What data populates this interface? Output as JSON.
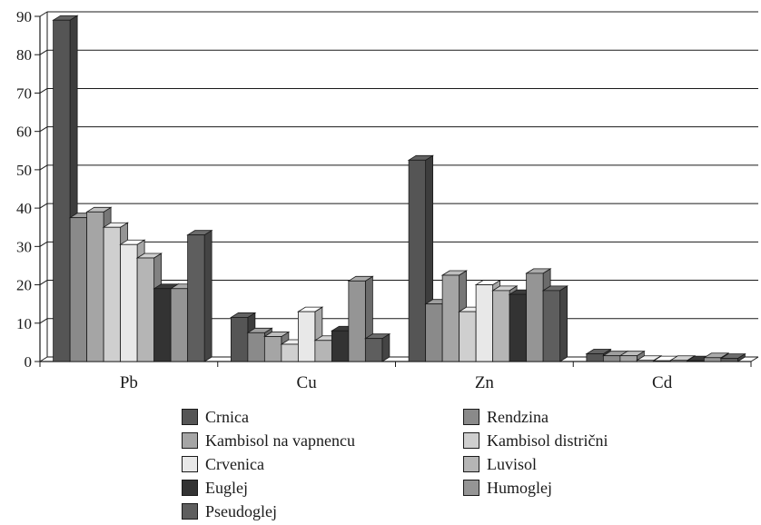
{
  "chart_data": {
    "type": "bar",
    "categories": [
      "Pb",
      "Cu",
      "Zn",
      "Cd"
    ],
    "ylim": [
      0,
      90
    ],
    "yticks": [
      "0",
      "10",
      "20",
      "30",
      "40",
      "50",
      "60",
      "70",
      "80",
      "90"
    ],
    "grid": true,
    "legend_placement": "bottom",
    "three_d": true,
    "series": [
      {
        "name": "Crnica",
        "values": [
          89,
          11.5,
          52.5,
          2
        ],
        "color": "#555555"
      },
      {
        "name": "Rendzina",
        "values": [
          37.5,
          7.5,
          15,
          1.5
        ],
        "color": "#8a8a8a"
      },
      {
        "name": "Kambisol na vapnencu",
        "values": [
          39,
          6.5,
          22.5,
          1.5
        ],
        "color": "#a5a5a5"
      },
      {
        "name": "Kambisol distrični",
        "values": [
          35,
          4.5,
          13,
          0.3
        ],
        "color": "#cfcfcf"
      },
      {
        "name": "Crvenica",
        "values": [
          30.5,
          13,
          20,
          0.2
        ],
        "color": "#e8e8e8"
      },
      {
        "name": "Luvisol",
        "values": [
          27,
          5.5,
          18.5,
          0.3
        ],
        "color": "#b5b5b5"
      },
      {
        "name": "Euglej",
        "values": [
          19,
          8,
          17.5,
          0.2
        ],
        "color": "#333333"
      },
      {
        "name": "Humoglej",
        "values": [
          19,
          21,
          23,
          1
        ],
        "color": "#959595"
      },
      {
        "name": "Pseudoglej",
        "values": [
          33,
          6,
          18.5,
          0.8
        ],
        "color": "#5e5e5e"
      }
    ]
  }
}
